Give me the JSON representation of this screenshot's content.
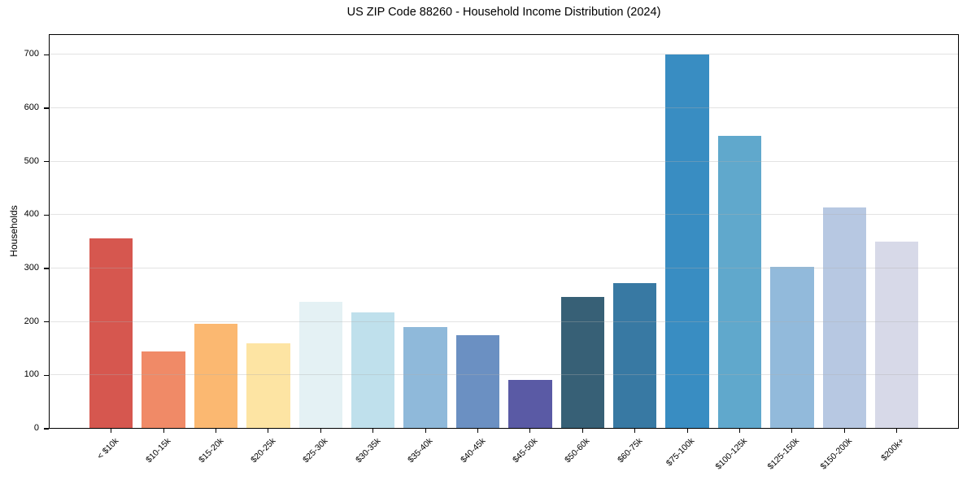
{
  "chart_data": {
    "type": "bar",
    "title": "US ZIP Code 88260 - Household Income Distribution (2024)",
    "xlabel": "",
    "ylabel": "Households",
    "categories": [
      "< $10k",
      "$10-15k",
      "$15-20k",
      "$20-25k",
      "$25-30k",
      "$30-35k",
      "$35-40k",
      "$40-45k",
      "$45-50k",
      "$50-60k",
      "$60-75k",
      "$75-100k",
      "$100-125k",
      "$125-150k",
      "$150-200k",
      "$200k+"
    ],
    "values": [
      356,
      145,
      196,
      160,
      237,
      218,
      191,
      175,
      91,
      246,
      273,
      700,
      548,
      303,
      415,
      351
    ],
    "bar_colors": [
      "#d6574f",
      "#f08a67",
      "#fbb871",
      "#fde4a3",
      "#e4f1f4",
      "#bfe0ec",
      "#8fb9da",
      "#6b90c2",
      "#5a5aa5",
      "#376076",
      "#3879a3",
      "#398dc2",
      "#60a8cc",
      "#92badb",
      "#b7c8e2",
      "#d7d9e8"
    ],
    "yticks": [
      0,
      100,
      200,
      300,
      400,
      500,
      600,
      700
    ],
    "ylim": [
      0,
      739
    ],
    "grid": "horizontal-only, drawn over bars",
    "legend": "none"
  },
  "colors": {
    "background": "#ffffff",
    "spine": "#000000",
    "gridline": "#e7e7e7",
    "text": "#000000"
  }
}
